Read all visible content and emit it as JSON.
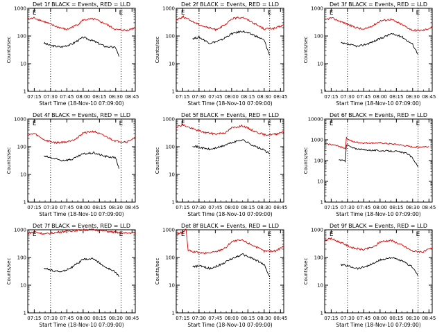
{
  "figure": {
    "xlabel_common": "Start Time (18-Nov-10 07:09:00)",
    "ylabel_common": "Counts/sec",
    "x_tick_labels": [
      "07:15",
      "07:30",
      "07:45",
      "08:00",
      "08:15",
      "08:30",
      "08:45"
    ],
    "y_tick_labels": [
      "1",
      "10",
      "100",
      "1000"
    ],
    "colors": {
      "events": "#000000",
      "lld": "#d40000",
      "axis": "#000000",
      "background": "#ffffff"
    }
  },
  "chart_data": [
    {
      "type": "line",
      "title": "Det 1f BLACK = Events, RED = LLD",
      "xlim": [
        "07:09",
        "08:48"
      ],
      "ylim": [
        1,
        1000
      ],
      "yscale": "log",
      "marker_lines": [
        "07:30",
        "08:35"
      ],
      "marker_labels": [
        "E",
        "E"
      ],
      "series": [
        {
          "name": "Events",
          "x": [
            "07:24",
            "07:30",
            "07:40",
            "07:50",
            "08:00",
            "08:10",
            "08:20",
            "08:30",
            "08:33"
          ],
          "values": [
            55,
            45,
            40,
            52,
            90,
            65,
            42,
            38,
            18
          ]
        },
        {
          "name": "LLD",
          "x": [
            "07:09",
            "07:15",
            "07:25",
            "07:35",
            "07:45",
            "07:55",
            "08:00",
            "08:10",
            "08:20",
            "08:30",
            "08:40",
            "08:48"
          ],
          "values": [
            400,
            450,
            320,
            220,
            170,
            260,
            380,
            410,
            280,
            170,
            160,
            200
          ]
        }
      ]
    },
    {
      "type": "line",
      "title": "Det 2f BLACK = Events, RED = LLD",
      "xlim": [
        "07:09",
        "08:48"
      ],
      "ylim": [
        1,
        1000
      ],
      "yscale": "log",
      "marker_lines": [
        "07:30",
        "08:35"
      ],
      "marker_labels": [
        "E",
        "E"
      ],
      "series": [
        {
          "name": "Events",
          "x": [
            "07:24",
            "07:30",
            "07:40",
            "07:50",
            "08:00",
            "08:10",
            "08:20",
            "08:30",
            "08:35"
          ],
          "values": [
            80,
            90,
            55,
            70,
            120,
            150,
            110,
            70,
            20
          ]
        },
        {
          "name": "LLD",
          "x": [
            "07:09",
            "07:15",
            "07:25",
            "07:35",
            "07:45",
            "07:55",
            "08:00",
            "08:10",
            "08:20",
            "08:30",
            "08:40",
            "08:48"
          ],
          "values": [
            380,
            500,
            320,
            220,
            170,
            260,
            420,
            480,
            300,
            180,
            190,
            250
          ]
        }
      ]
    },
    {
      "type": "line",
      "title": "Det 3f BLACK = Events, RED = LLD",
      "xlim": [
        "07:09",
        "08:48"
      ],
      "ylim": [
        1,
        1000
      ],
      "yscale": "log",
      "marker_lines": [
        "07:30",
        "08:35"
      ],
      "marker_labels": [
        "E",
        "E"
      ],
      "series": [
        {
          "name": "Events",
          "x": [
            "07:24",
            "07:30",
            "07:40",
            "07:50",
            "08:00",
            "08:10",
            "08:20",
            "08:30",
            "08:35"
          ],
          "values": [
            55,
            50,
            42,
            55,
            80,
            120,
            95,
            50,
            22
          ]
        },
        {
          "name": "LLD",
          "x": [
            "07:09",
            "07:15",
            "07:25",
            "07:35",
            "07:45",
            "07:55",
            "08:00",
            "08:10",
            "08:20",
            "08:30",
            "08:40",
            "08:48"
          ],
          "values": [
            380,
            450,
            320,
            220,
            170,
            260,
            350,
            400,
            260,
            160,
            160,
            210
          ]
        }
      ]
    },
    {
      "type": "line",
      "title": "Det 4f BLACK = Events, RED = LLD",
      "xlim": [
        "07:09",
        "08:48"
      ],
      "ylim": [
        1,
        1000
      ],
      "yscale": "log",
      "marker_lines": [
        "07:30",
        "08:35"
      ],
      "marker_labels": [
        "E",
        "E"
      ],
      "series": [
        {
          "name": "Events",
          "x": [
            "07:24",
            "07:30",
            "07:40",
            "07:50",
            "08:00",
            "08:10",
            "08:20",
            "08:30",
            "08:33"
          ],
          "values": [
            45,
            40,
            32,
            35,
            55,
            60,
            45,
            40,
            16
          ]
        },
        {
          "name": "LLD",
          "x": [
            "07:09",
            "07:15",
            "07:25",
            "07:35",
            "07:45",
            "07:55",
            "08:00",
            "08:10",
            "08:20",
            "08:30",
            "08:40",
            "08:48"
          ],
          "values": [
            260,
            300,
            170,
            140,
            150,
            210,
            320,
            360,
            240,
            160,
            150,
            210
          ]
        }
      ]
    },
    {
      "type": "line",
      "title": "Det 5f BLACK = Events, RED = LLD",
      "xlim": [
        "07:09",
        "08:48"
      ],
      "ylim": [
        1,
        1000
      ],
      "yscale": "log",
      "marker_lines": [
        "07:30",
        "08:35"
      ],
      "marker_labels": [
        "E",
        "E"
      ],
      "series": [
        {
          "name": "Events",
          "x": [
            "07:24",
            "07:30",
            "07:40",
            "07:50",
            "08:00",
            "08:10",
            "08:20",
            "08:30",
            "08:35"
          ],
          "values": [
            110,
            95,
            80,
            100,
            140,
            180,
            110,
            75,
            55
          ]
        },
        {
          "name": "LLD",
          "x": [
            "07:09",
            "07:15",
            "07:25",
            "07:35",
            "07:45",
            "07:55",
            "08:00",
            "08:10",
            "08:20",
            "08:30",
            "08:40",
            "08:48"
          ],
          "values": [
            520,
            620,
            430,
            330,
            290,
            330,
            480,
            570,
            380,
            270,
            280,
            360
          ]
        }
      ]
    },
    {
      "type": "line",
      "title": "Det 6f BLACK = Events, RED = LLD",
      "xlim": [
        "07:09",
        "08:48"
      ],
      "ylim": [
        1,
        10000
      ],
      "yscale": "log",
      "marker_lines": [
        "07:30",
        "08:35"
      ],
      "marker_labels": [
        "E",
        "E"
      ],
      "series": [
        {
          "name": "Events",
          "x": [
            "07:22",
            "07:28",
            "07:29",
            "07:35",
            "07:45",
            "08:00",
            "08:15",
            "08:25",
            "08:30",
            "08:35"
          ],
          "values": [
            110,
            95,
            600,
            400,
            330,
            300,
            280,
            220,
            130,
            50
          ]
        },
        {
          "name": "LLD",
          "x": [
            "07:09",
            "07:15",
            "07:25",
            "07:28",
            "07:29",
            "07:35",
            "07:45",
            "08:00",
            "08:15",
            "08:30",
            "08:45"
          ],
          "values": [
            650,
            600,
            450,
            380,
            1200,
            800,
            700,
            700,
            600,
            450,
            470
          ]
        }
      ]
    },
    {
      "type": "line",
      "title": "Det 7f BLACK = Events, RED = LLD",
      "xlim": [
        "07:09",
        "08:48"
      ],
      "ylim": [
        1,
        1000
      ],
      "yscale": "log",
      "marker_lines": [
        "07:30",
        "08:35"
      ],
      "marker_labels": [
        "E",
        "E"
      ],
      "series": [
        {
          "name": "Events",
          "x": [
            "07:24",
            "07:30",
            "07:40",
            "07:50",
            "08:00",
            "08:10",
            "08:20",
            "08:30",
            "08:33"
          ],
          "values": [
            42,
            35,
            30,
            45,
            85,
            90,
            45,
            30,
            20
          ]
        },
        {
          "name": "LLD",
          "x": [
            "07:09",
            "07:15",
            "07:25",
            "07:35",
            "07:45",
            "07:55",
            "08:00",
            "08:10",
            "08:20",
            "08:30",
            "08:40",
            "08:48"
          ],
          "values": [
            750,
            850,
            700,
            800,
            900,
            950,
            1000,
            1000,
            900,
            800,
            750,
            800
          ]
        }
      ]
    },
    {
      "type": "line",
      "title": "Det 8f BLACK = Events, RED = LLD",
      "xlim": [
        "07:09",
        "08:48"
      ],
      "ylim": [
        1,
        1000
      ],
      "yscale": "log",
      "marker_lines": [
        "07:30",
        "08:35"
      ],
      "marker_labels": [
        "E",
        "E"
      ],
      "series": [
        {
          "name": "Events",
          "x": [
            "07:24",
            "07:30",
            "07:40",
            "07:50",
            "08:00",
            "08:10",
            "08:20",
            "08:30",
            "08:35"
          ],
          "values": [
            45,
            50,
            40,
            55,
            90,
            130,
            90,
            55,
            20
          ]
        },
        {
          "name": "LLD",
          "x": [
            "07:09",
            "07:15",
            "07:17",
            "07:18",
            "07:20",
            "07:25",
            "07:35",
            "07:45",
            "07:55",
            "08:00",
            "08:10",
            "08:20",
            "08:30",
            "08:40",
            "08:48"
          ],
          "values": [
            700,
            800,
            1000,
            1000,
            180,
            160,
            140,
            160,
            230,
            380,
            420,
            270,
            170,
            170,
            260
          ]
        }
      ]
    },
    {
      "type": "line",
      "title": "Det 9f BLACK = Events, RED = LLD",
      "xlim": [
        "07:09",
        "08:48"
      ],
      "ylim": [
        1,
        1000
      ],
      "yscale": "log",
      "marker_lines": [
        "07:30",
        "08:35"
      ],
      "marker_labels": [
        "E",
        "E"
      ],
      "series": [
        {
          "name": "Events",
          "x": [
            "07:24",
            "07:30",
            "07:40",
            "07:50",
            "08:00",
            "08:10",
            "08:20",
            "08:30",
            "08:35"
          ],
          "values": [
            55,
            50,
            40,
            52,
            80,
            100,
            75,
            45,
            22
          ]
        },
        {
          "name": "LLD",
          "x": [
            "07:09",
            "07:15",
            "07:25",
            "07:35",
            "07:45",
            "07:55",
            "08:00",
            "08:10",
            "08:20",
            "08:30",
            "08:40",
            "08:48"
          ],
          "values": [
            420,
            480,
            330,
            220,
            190,
            250,
            370,
            420,
            280,
            170,
            160,
            220
          ]
        }
      ]
    }
  ]
}
